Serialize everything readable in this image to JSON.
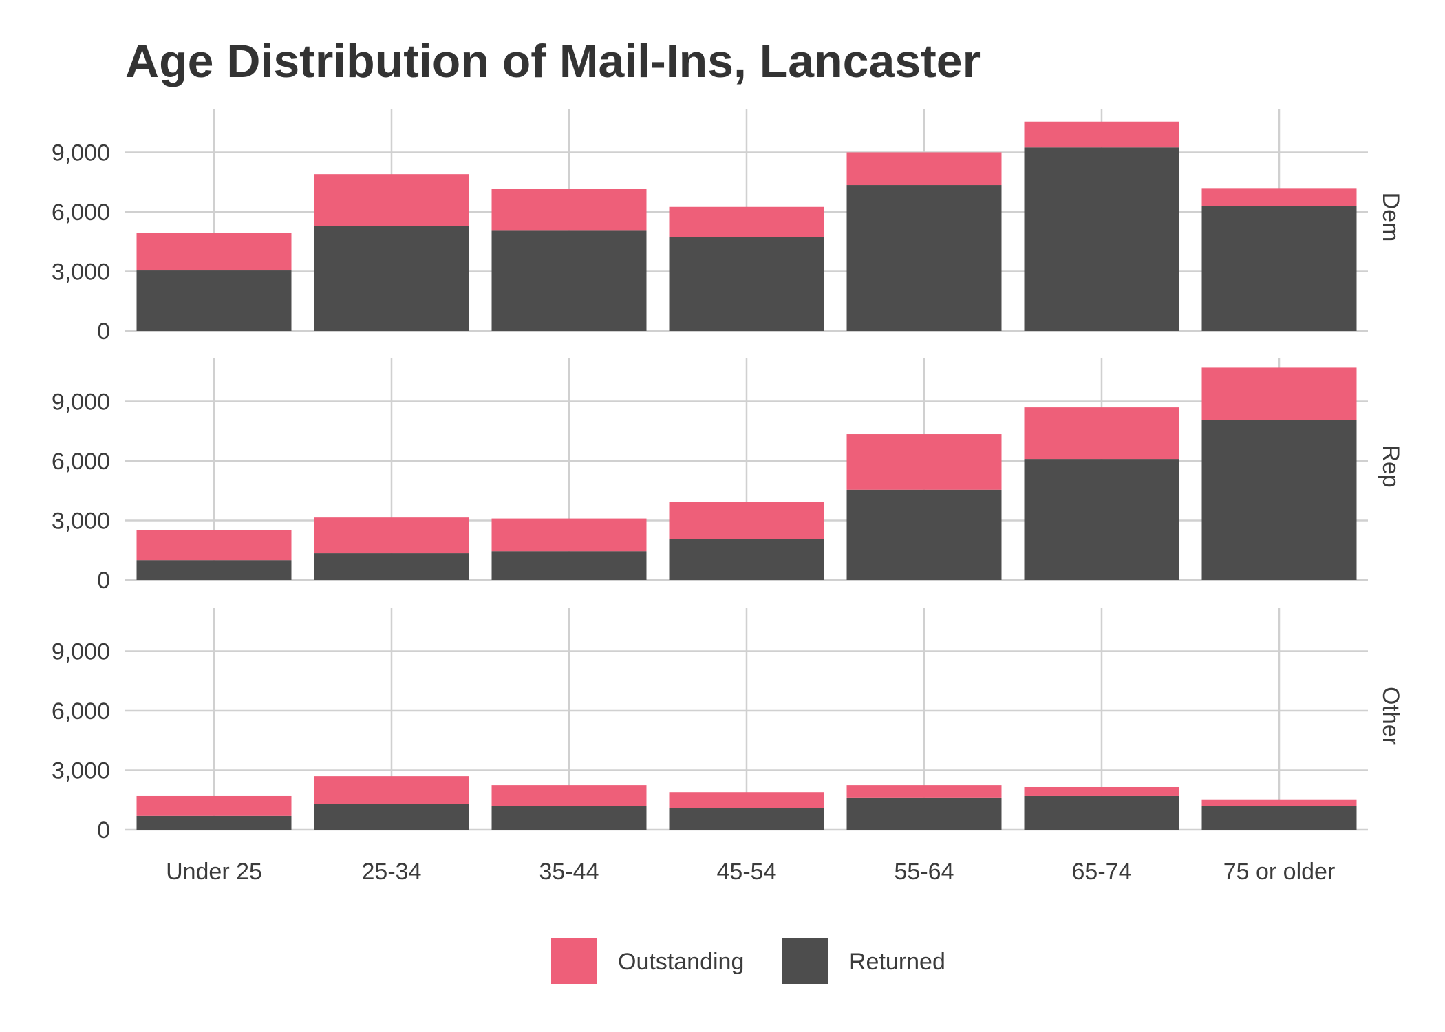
{
  "title": "Age Distribution of Mail-Ins, Lancaster",
  "colors": {
    "outstanding": "#EE5F79",
    "returned": "#4D4D4D",
    "grid": "#D0D0D0",
    "text": "#3B3B3B",
    "title": "#333333"
  },
  "chart_data": {
    "type": "bar",
    "stacked": true,
    "facets": [
      "Dem",
      "Rep",
      "Other"
    ],
    "categories": [
      "Under 25",
      "25-34",
      "35-44",
      "45-54",
      "55-64",
      "65-74",
      "75 or older"
    ],
    "y_ticks": [
      0,
      3000,
      6000,
      9000
    ],
    "y_tick_labels": [
      "0",
      "3,000",
      "6,000",
      "9,000"
    ],
    "ylim": [
      0,
      11200
    ],
    "grid": true,
    "legend_position": "bottom",
    "legend": [
      "Outstanding",
      "Returned"
    ],
    "panels": [
      {
        "name": "Dem",
        "series": [
          {
            "name": "Returned",
            "values": [
              3050,
              5300,
              5050,
              4750,
              7350,
              9250,
              6300
            ]
          },
          {
            "name": "Outstanding",
            "values": [
              1900,
              2600,
              2100,
              1500,
              1650,
              1300,
              900
            ]
          }
        ]
      },
      {
        "name": "Rep",
        "series": [
          {
            "name": "Returned",
            "values": [
              1000,
              1350,
              1450,
              2050,
              4550,
              6100,
              8050
            ]
          },
          {
            "name": "Outstanding",
            "values": [
              1500,
              1800,
              1650,
              1900,
              2800,
              2600,
              2650
            ]
          }
        ]
      },
      {
        "name": "Other",
        "series": [
          {
            "name": "Returned",
            "values": [
              700,
              1300,
              1200,
              1100,
              1600,
              1700,
              1200
            ]
          },
          {
            "name": "Outstanding",
            "values": [
              1000,
              1400,
              1050,
              800,
              650,
              450,
              300
            ]
          }
        ]
      }
    ]
  }
}
